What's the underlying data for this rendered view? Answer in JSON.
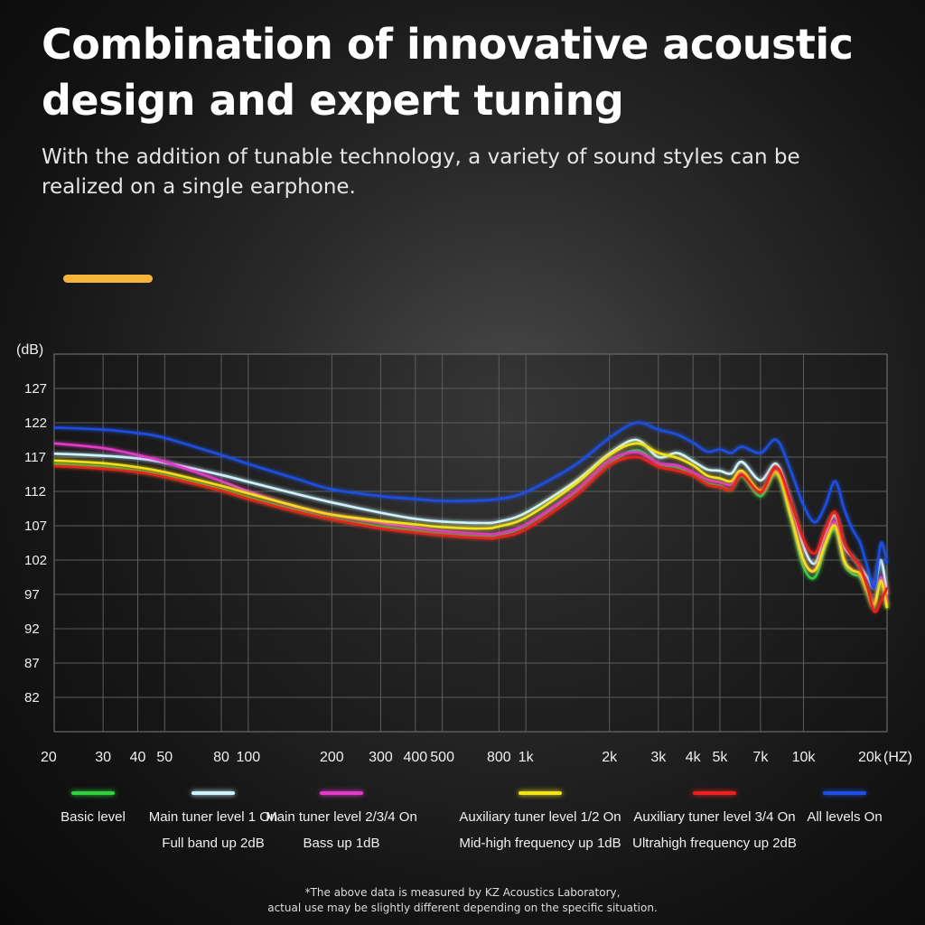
{
  "header": {
    "title": "Combination of innovative acoustic design and expert tuning",
    "subtitle": "With the addition of tunable technology, a variety of sound styles can be realized on a single earphone.",
    "accent_color": "#f5b53a"
  },
  "legend": [
    {
      "label": "Basic level",
      "sub": "",
      "color": "#2fd13c"
    },
    {
      "label": "Main tuner level 1 On",
      "sub": "Full band up 2dB",
      "color": "#cdf3ff"
    },
    {
      "label": "Main tuner level 2/3/4 On",
      "sub": "Bass up 1dB",
      "color": "#e13bc8"
    },
    {
      "label": "Auxiliary tuner level 1/2 On",
      "sub": "Mid-high frequency up 1dB",
      "color": "#f2e21a"
    },
    {
      "label": "Auxiliary tuner level 3/4 On",
      "sub": "Ultrahigh frequency up 2dB",
      "color": "#e8231f"
    },
    {
      "label": "All levels On",
      "sub": "",
      "color": "#1f4fe0"
    }
  ],
  "footnote": {
    "line1": "*The above data is measured by KZ Acoustics Laboratory,",
    "line2": "actual use may be slightly different depending on the specific situation."
  },
  "chart_data": {
    "type": "line",
    "ylabel": "(dB)",
    "xlabel": "(HZ)",
    "xscale": "log",
    "xlim": [
      20,
      20000
    ],
    "ylim": [
      77,
      132
    ],
    "yticks": [
      127,
      122,
      117,
      112,
      107,
      102,
      97,
      92,
      87,
      82
    ],
    "xticks": [
      {
        "v": 20,
        "label": "20"
      },
      {
        "v": 30,
        "label": "30"
      },
      {
        "v": 40,
        "label": "40"
      },
      {
        "v": 50,
        "label": "50"
      },
      {
        "v": 80,
        "label": "80"
      },
      {
        "v": 100,
        "label": "100"
      },
      {
        "v": 200,
        "label": "200"
      },
      {
        "v": 300,
        "label": "300"
      },
      {
        "v": 400,
        "label": "400"
      },
      {
        "v": 500,
        "label": "500"
      },
      {
        "v": 800,
        "label": "800"
      },
      {
        "v": 1000,
        "label": "1k"
      },
      {
        "v": 2000,
        "label": "2k"
      },
      {
        "v": 3000,
        "label": "3k"
      },
      {
        "v": 4000,
        "label": "4k"
      },
      {
        "v": 5000,
        "label": "5k"
      },
      {
        "v": 7000,
        "label": "7k"
      },
      {
        "v": 10000,
        "label": "10k"
      },
      {
        "v": 20000,
        "label": "20k"
      }
    ],
    "grid": true,
    "x": [
      20,
      30,
      40,
      50,
      80,
      100,
      150,
      200,
      300,
      400,
      500,
      700,
      800,
      1000,
      1500,
      2000,
      2500,
      3000,
      3500,
      4000,
      4500,
      5000,
      5500,
      6000,
      7000,
      8000,
      9000,
      10000,
      11000,
      12000,
      13000,
      14000,
      15000,
      16000,
      17000,
      18000,
      19000,
      20000
    ],
    "series": [
      {
        "name": "Basic level",
        "color": "#2fd13c",
        "values": [
          116.0,
          115.6,
          115.0,
          114.3,
          112.3,
          111.1,
          109.2,
          108.0,
          106.9,
          106.3,
          105.8,
          105.5,
          105.7,
          107.0,
          111.8,
          116.0,
          118.0,
          116.0,
          115.5,
          114.5,
          113.2,
          112.8,
          112.3,
          114.2,
          111.3,
          114.5,
          108.0,
          101.0,
          99.5,
          104.0,
          106.5,
          101.5,
          100.0,
          99.5,
          97.0,
          95.0,
          99.0,
          95.0
        ]
      },
      {
        "name": "Main tuner level 1 On",
        "color": "#cdf3ff",
        "values": [
          117.5,
          117.2,
          116.8,
          116.2,
          114.4,
          113.4,
          111.6,
          110.4,
          108.9,
          108.0,
          107.6,
          107.4,
          107.6,
          108.9,
          113.4,
          117.5,
          119.5,
          117.0,
          117.6,
          116.4,
          115.2,
          115.0,
          114.6,
          116.3,
          113.6,
          116.0,
          110.5,
          104.0,
          101.5,
          106.0,
          108.5,
          104.0,
          102.5,
          101.0,
          99.5,
          98.0,
          102.0,
          97.0
        ]
      },
      {
        "name": "Main tuner level 2/3/4 On",
        "color": "#e13bc8",
        "values": [
          119.0,
          118.3,
          117.3,
          116.3,
          113.5,
          112.0,
          109.7,
          108.6,
          107.4,
          106.7,
          106.2,
          105.8,
          105.9,
          107.2,
          112.0,
          116.5,
          117.7,
          116.1,
          115.8,
          114.8,
          113.7,
          113.3,
          113.0,
          114.8,
          111.9,
          115.0,
          109.0,
          102.0,
          100.5,
          105.0,
          107.5,
          102.0,
          100.5,
          100.0,
          97.5,
          95.5,
          99.5,
          95.5
        ]
      },
      {
        "name": "Auxiliary tuner level 1/2 On",
        "color": "#f2e21a",
        "values": [
          116.5,
          116.1,
          115.5,
          114.8,
          112.8,
          111.7,
          109.8,
          108.6,
          107.7,
          107.2,
          106.8,
          106.6,
          106.9,
          108.2,
          113.0,
          117.3,
          119.0,
          117.6,
          116.9,
          115.8,
          114.3,
          113.9,
          113.5,
          115.0,
          112.1,
          114.8,
          108.5,
          102.0,
          100.5,
          104.5,
          107.0,
          102.0,
          100.5,
          100.0,
          97.5,
          95.5,
          99.0,
          95.0
        ]
      },
      {
        "name": "Auxiliary tuner level 3/4 On",
        "color": "#e8231f",
        "values": [
          115.7,
          115.3,
          114.8,
          114.1,
          112.1,
          110.9,
          109.0,
          107.9,
          106.6,
          106.0,
          105.6,
          105.2,
          105.3,
          106.5,
          111.3,
          115.8,
          117.0,
          115.6,
          115.0,
          114.3,
          113.0,
          112.6,
          112.3,
          114.4,
          111.9,
          115.5,
          110.5,
          105.0,
          103.0,
          106.5,
          109.0,
          104.5,
          102.5,
          101.0,
          98.0,
          94.5,
          96.0,
          98.0
        ]
      },
      {
        "name": "All levels On",
        "color": "#1f4fe0",
        "values": [
          121.3,
          121.0,
          120.5,
          119.8,
          117.3,
          116.0,
          113.8,
          112.3,
          111.3,
          110.9,
          110.6,
          110.7,
          110.9,
          111.9,
          115.8,
          119.8,
          122.0,
          121.0,
          120.3,
          119.1,
          117.8,
          118.1,
          117.6,
          118.5,
          117.6,
          119.5,
          115.0,
          110.0,
          107.5,
          110.0,
          113.5,
          109.5,
          106.5,
          104.5,
          101.0,
          98.0,
          104.5,
          101.5
        ]
      }
    ]
  }
}
